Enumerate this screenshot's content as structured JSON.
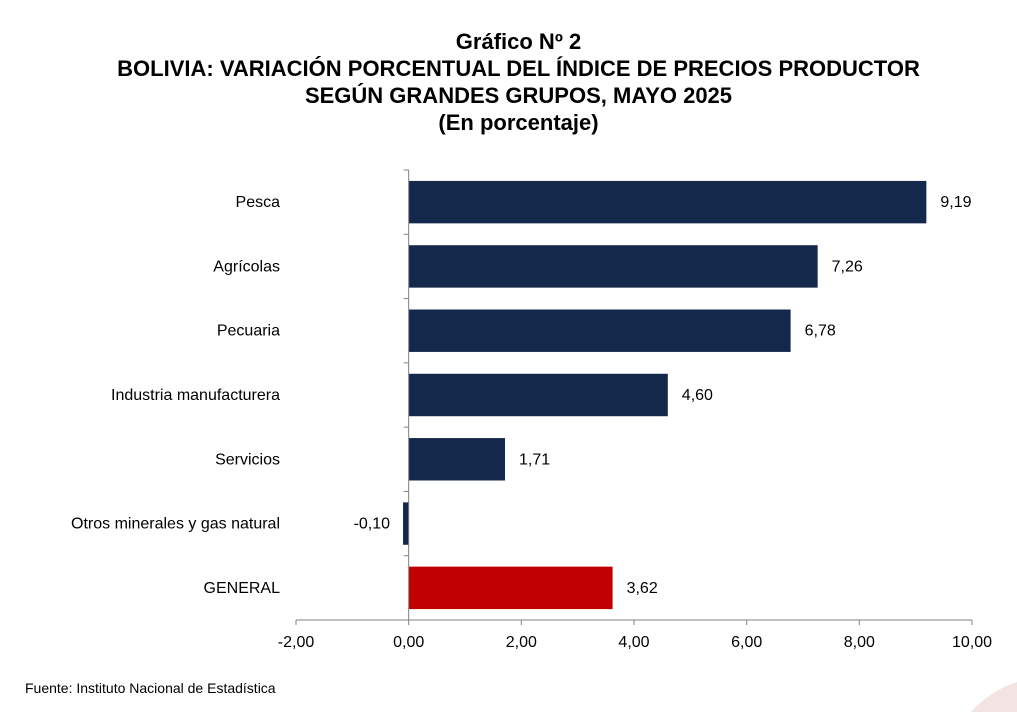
{
  "header": {
    "chart_number": "Gráfico Nº 2",
    "title_line1": "BOLIVIA: VARIACIÓN PORCENTUAL DEL ÍNDICE DE PRECIOS PRODUCTOR",
    "title_line2": "SEGÚN GRANDES GRUPOS, MAYO 2025",
    "subtitle": "(En porcentaje)"
  },
  "footer": {
    "source": "Fuente: Instituto Nacional de Estadística"
  },
  "colors": {
    "bar": "#14284B",
    "highlight": "#C00000",
    "axis": "#808080"
  },
  "chart_data": {
    "type": "bar",
    "orientation": "horizontal",
    "categories": [
      "Pesca",
      "Agrícolas",
      "Pecuaria",
      "Industria manufacturera",
      "Servicios",
      "Otros minerales y gas natural",
      "GENERAL"
    ],
    "values": [
      9.19,
      7.26,
      6.78,
      4.6,
      1.71,
      -0.1,
      3.62
    ],
    "value_labels": [
      "9,19",
      "7,26",
      "6,78",
      "4,60",
      "1,71",
      "-0,10",
      "3,62"
    ],
    "highlight_category": "GENERAL",
    "xlim": [
      -2,
      10
    ],
    "x_ticks": [
      -2,
      0,
      2,
      4,
      6,
      8,
      10
    ],
    "x_tick_labels": [
      "-2,00",
      "0,00",
      "2,00",
      "4,00",
      "6,00",
      "8,00",
      "10,00"
    ],
    "grid": false,
    "legend": "none",
    "xlabel": "",
    "ylabel": ""
  }
}
